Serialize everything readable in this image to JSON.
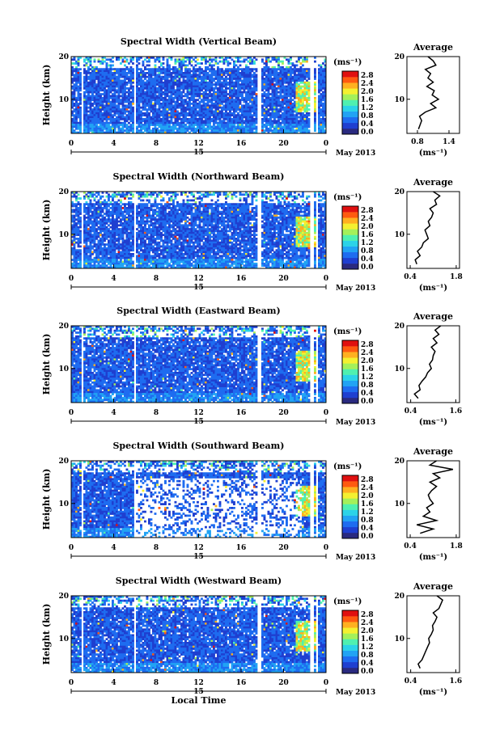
{
  "chart_data": [
    {
      "type": "heatmap",
      "title": "Spectral Width (Vertical Beam)",
      "ylabel": "Height (km)",
      "y_ticks": [
        "20",
        "10"
      ],
      "x_ticks": [
        "0",
        "4",
        "8",
        "12",
        "16",
        "20",
        "0"
      ],
      "date_label": "15",
      "month_label": "May 2013",
      "colorbar_unit": "(ms⁻¹)",
      "colorbar_ticks": [
        "2.8",
        "2.4",
        "2.0",
        "1.6",
        "1.2",
        "0.8",
        "0.4",
        "0.0"
      ],
      "xlim": [
        0,
        24
      ],
      "ylim": [
        2,
        20
      ],
      "profile": {
        "title": "Average",
        "xlabel": "(ms⁻¹)",
        "x_ticks": [
          "0.8",
          "1.4"
        ],
        "y_ticks": [
          "20",
          "10"
        ],
        "xlim": [
          0.6,
          1.6
        ],
        "heights": [
          3,
          4,
          5,
          6,
          7,
          8,
          9,
          10,
          11,
          12,
          13,
          14,
          15,
          16,
          17,
          18,
          19,
          20
        ],
        "values": [
          0.82,
          0.85,
          0.88,
          0.84,
          0.95,
          1.15,
          1.05,
          1.2,
          1.08,
          1.12,
          0.98,
          1.1,
          1.0,
          1.05,
          0.95,
          1.15,
          1.1,
          1.0
        ]
      }
    },
    {
      "type": "heatmap",
      "title": "Spectral Width (Northward Beam)",
      "ylabel": "Height (km)",
      "y_ticks": [
        "20",
        "10"
      ],
      "x_ticks": [
        "0",
        "4",
        "8",
        "12",
        "16",
        "20",
        "0"
      ],
      "date_label": "15",
      "month_label": "May 2013",
      "colorbar_unit": "(ms⁻¹)",
      "colorbar_ticks": [
        "2.8",
        "2.4",
        "2.0",
        "1.6",
        "1.2",
        "0.8",
        "0.4",
        "0.0"
      ],
      "xlim": [
        0,
        24
      ],
      "ylim": [
        2,
        20
      ],
      "profile": {
        "title": "Average",
        "xlabel": "(ms⁻¹)",
        "x_ticks": [
          "0.4",
          "1.8"
        ],
        "y_ticks": [
          "20",
          "10"
        ],
        "xlim": [
          0.3,
          1.9
        ],
        "heights": [
          3,
          4,
          5,
          6,
          7,
          8,
          9,
          10,
          11,
          12,
          13,
          14,
          15,
          16,
          17,
          18,
          19,
          20
        ],
        "values": [
          0.6,
          0.55,
          0.7,
          0.62,
          0.75,
          0.8,
          0.95,
          0.9,
          0.85,
          1.0,
          0.95,
          1.05,
          1.1,
          1.0,
          1.2,
          1.15,
          1.3,
          1.1
        ]
      }
    },
    {
      "type": "heatmap",
      "title": "Spectral Width (Eastward Beam)",
      "ylabel": "Height (km)",
      "y_ticks": [
        "20",
        "10"
      ],
      "x_ticks": [
        "0",
        "4",
        "8",
        "12",
        "16",
        "20",
        "0"
      ],
      "date_label": "15",
      "month_label": "May 2013",
      "colorbar_unit": "(ms⁻¹)",
      "colorbar_ticks": [
        "2.8",
        "2.4",
        "2.0",
        "1.6",
        "1.2",
        "0.8",
        "0.4",
        "0.0"
      ],
      "xlim": [
        0,
        24
      ],
      "ylim": [
        2,
        20
      ],
      "profile": {
        "title": "Average",
        "xlabel": "(ms⁻¹)",
        "x_ticks": [
          "0.4",
          "1.6"
        ],
        "y_ticks": [
          "20",
          "10"
        ],
        "xlim": [
          0.3,
          1.7
        ],
        "heights": [
          3,
          4,
          5,
          6,
          7,
          8,
          9,
          10,
          11,
          12,
          13,
          14,
          15,
          16,
          17,
          18,
          19,
          20
        ],
        "values": [
          0.6,
          0.5,
          0.65,
          0.62,
          0.7,
          0.8,
          0.85,
          0.95,
          0.9,
          0.98,
          1.0,
          1.05,
          0.95,
          1.1,
          1.0,
          1.15,
          1.05,
          1.2
        ]
      }
    },
    {
      "type": "heatmap",
      "title": "Spectral Width (Southward Beam)",
      "ylabel": "Height (km)",
      "y_ticks": [
        "20",
        "10"
      ],
      "x_ticks": [
        "0",
        "4",
        "8",
        "12",
        "16",
        "20",
        "0"
      ],
      "date_label": "15",
      "month_label": "May 2013",
      "colorbar_unit": "(ms⁻¹)",
      "colorbar_ticks": [
        "2.8",
        "2.4",
        "2.0",
        "1.6",
        "1.2",
        "0.8",
        "0.4",
        "0.0"
      ],
      "xlim": [
        0,
        24
      ],
      "ylim": [
        2,
        20
      ],
      "profile": {
        "title": "Average",
        "xlabel": "(ms⁻¹)",
        "x_ticks": [
          "0.4",
          "1.8"
        ],
        "y_ticks": [
          "20",
          "10"
        ],
        "xlim": [
          0.3,
          1.9
        ],
        "heights": [
          3,
          4,
          5,
          6,
          7,
          8,
          9,
          10,
          11,
          12,
          13,
          14,
          15,
          16,
          17,
          18,
          19,
          20
        ],
        "values": [
          0.7,
          1.1,
          0.6,
          1.2,
          0.8,
          1.0,
          0.9,
          1.1,
          1.0,
          0.95,
          1.05,
          1.2,
          1.0,
          1.3,
          1.1,
          1.7,
          1.0,
          1.2
        ]
      }
    },
    {
      "type": "heatmap",
      "title": "Spectral Width (Westward Beam)",
      "ylabel": "Height (km)",
      "y_ticks": [
        "20",
        "10"
      ],
      "x_ticks": [
        "0",
        "4",
        "8",
        "12",
        "16",
        "20",
        "0"
      ],
      "date_label": "15",
      "month_label": "May 2013",
      "xlabel": "Local Time",
      "colorbar_unit": "(ms⁻¹)",
      "colorbar_ticks": [
        "2.8",
        "2.4",
        "2.0",
        "1.6",
        "1.2",
        "0.8",
        "0.4",
        "0.0"
      ],
      "xlim": [
        0,
        24
      ],
      "ylim": [
        2,
        20
      ],
      "profile": {
        "title": "Average",
        "xlabel": "(ms⁻¹)",
        "x_ticks": [
          "0.4",
          "1.6"
        ],
        "y_ticks": [
          "20",
          "10"
        ],
        "xlim": [
          0.3,
          1.7
        ],
        "heights": [
          3,
          4,
          5,
          6,
          7,
          8,
          9,
          10,
          11,
          12,
          13,
          14,
          15,
          16,
          17,
          18,
          19,
          20
        ],
        "values": [
          0.65,
          0.6,
          0.7,
          0.75,
          0.8,
          0.85,
          0.9,
          0.88,
          0.95,
          1.0,
          0.98,
          1.05,
          1.1,
          1.0,
          1.15,
          1.2,
          1.25,
          1.1
        ]
      }
    }
  ],
  "colorscale": [
    "#2a2a80",
    "#1f3fd0",
    "#1e6cf0",
    "#21a3f4",
    "#2bd3e8",
    "#4ff0b0",
    "#a4f05a",
    "#f4f030",
    "#ffb020",
    "#ff5a10",
    "#e01010"
  ]
}
